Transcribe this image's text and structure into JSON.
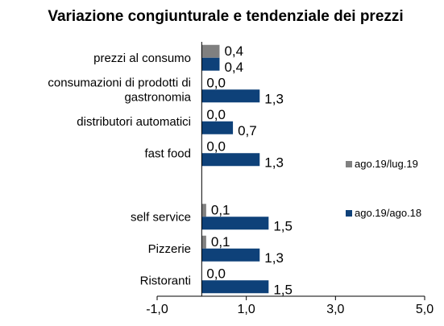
{
  "chart_data": {
    "type": "bar",
    "orientation": "horizontal",
    "title": "Variazione congiunturale e tendenziale dei prezzi",
    "categories": [
      "prezzi al consumo",
      "consumazioni di prodotti di gastronomia",
      "distributori automatici",
      "fast food",
      "",
      "self service",
      "Pizzerie",
      "Ristoranti"
    ],
    "category_display": [
      [
        "prezzi al consumo"
      ],
      [
        "consumazioni di prodotti di",
        "gastronomia"
      ],
      [
        "distributori automatici"
      ],
      [
        "fast food"
      ],
      [],
      [
        "self service"
      ],
      [
        "Pizzerie"
      ],
      [
        "Ristoranti"
      ]
    ],
    "series": [
      {
        "name": "ago.19/lug.19",
        "color": "#808080",
        "values": [
          0.4,
          0.0,
          0.0,
          0.0,
          null,
          0.1,
          0.1,
          0.0
        ],
        "labels": [
          "0,4",
          "0,0",
          "0,0",
          "0,0",
          "",
          "0,1",
          "0,1",
          "0,0"
        ]
      },
      {
        "name": "ago.19/ago.18",
        "color": "#0E4179",
        "values": [
          0.4,
          1.3,
          0.7,
          1.3,
          null,
          1.5,
          1.3,
          1.5
        ],
        "labels": [
          "0,4",
          "1,3",
          "0,7",
          "1,3",
          "",
          "1,5",
          "1,3",
          "1,5"
        ]
      }
    ],
    "xlim": [
      -1.0,
      5.0
    ],
    "xticks": [
      -1.0,
      1.0,
      3.0,
      5.0
    ],
    "xtick_labels": [
      "-1,0",
      "1,0",
      "3,0",
      "5,0"
    ],
    "grid": false,
    "legend_position": "right"
  }
}
